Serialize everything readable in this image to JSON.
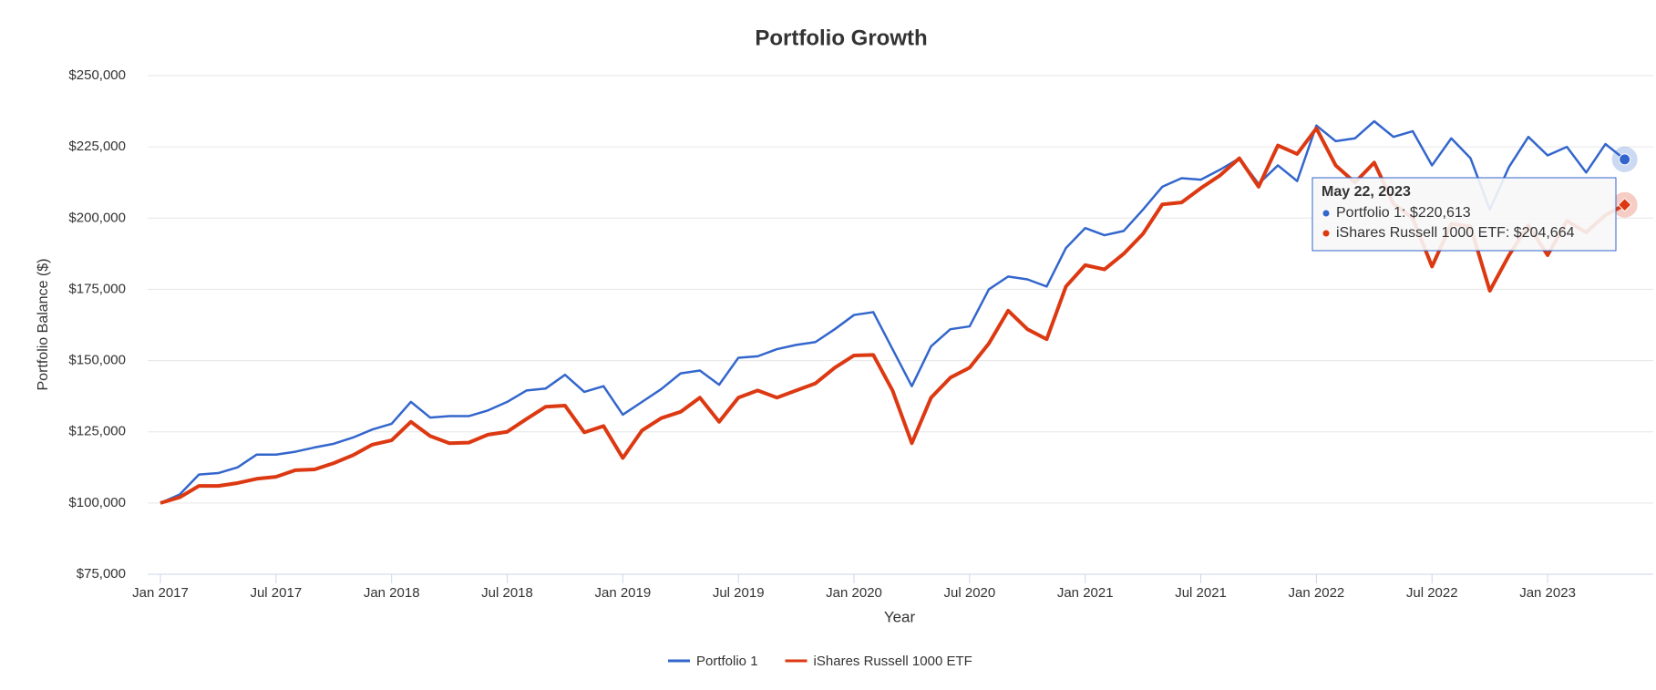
{
  "chart_data": {
    "type": "line",
    "title": "Portfolio Growth",
    "x_label": "Year",
    "y_label": "Portfolio Balance ($)",
    "x": [
      "2017-01",
      "2017-02",
      "2017-03",
      "2017-04",
      "2017-05",
      "2017-06",
      "2017-07",
      "2017-08",
      "2017-09",
      "2017-10",
      "2017-11",
      "2017-12",
      "2018-01",
      "2018-02",
      "2018-03",
      "2018-04",
      "2018-05",
      "2018-06",
      "2018-07",
      "2018-08",
      "2018-09",
      "2018-10",
      "2018-11",
      "2018-12",
      "2019-01",
      "2019-02",
      "2019-03",
      "2019-04",
      "2019-05",
      "2019-06",
      "2019-07",
      "2019-08",
      "2019-09",
      "2019-10",
      "2019-11",
      "2019-12",
      "2020-01",
      "2020-02",
      "2020-03",
      "2020-04",
      "2020-05",
      "2020-06",
      "2020-07",
      "2020-08",
      "2020-09",
      "2020-10",
      "2020-11",
      "2020-12",
      "2021-01",
      "2021-02",
      "2021-03",
      "2021-04",
      "2021-05",
      "2021-06",
      "2021-07",
      "2021-08",
      "2021-09",
      "2021-10",
      "2021-11",
      "2021-12",
      "2022-01",
      "2022-02",
      "2022-03",
      "2022-04",
      "2022-05",
      "2022-06",
      "2022-07",
      "2022-08",
      "2022-09",
      "2022-10",
      "2022-11",
      "2022-12",
      "2023-01",
      "2023-02",
      "2023-03",
      "2023-04",
      "2023-05"
    ],
    "series": [
      {
        "name": "Portfolio 1",
        "color": "#3366cc",
        "values": [
          100000,
          103000,
          110000,
          110500,
          112500,
          117000,
          117000,
          118000,
          119500,
          120800,
          123000,
          125800,
          127800,
          135500,
          130000,
          130500,
          130500,
          132500,
          135500,
          139500,
          140200,
          145000,
          139000,
          141000,
          131000,
          135500,
          140000,
          145500,
          146500,
          141500,
          151000,
          151500,
          154000,
          155500,
          156500,
          161000,
          166000,
          167000,
          154000,
          141000,
          155000,
          161000,
          162000,
          175000,
          179500,
          178500,
          176000,
          189500,
          196500,
          194000,
          195500,
          203000,
          211000,
          214000,
          213500,
          217000,
          221000,
          212000,
          218500,
          213000,
          232500,
          227000,
          228000,
          234000,
          228500,
          230500,
          218500,
          228000,
          221000,
          203000,
          218000,
          228500,
          222000,
          225000,
          216000,
          226000,
          220613
        ]
      },
      {
        "name": "iShares Russell 1000 ETF",
        "color": "#dc3912",
        "values": [
          100000,
          102000,
          106000,
          106000,
          107000,
          108500,
          109200,
          111500,
          111800,
          114000,
          116800,
          120500,
          122000,
          128500,
          123500,
          121000,
          121200,
          124000,
          125000,
          129500,
          133800,
          134200,
          124800,
          127000,
          115800,
          125500,
          129800,
          132000,
          137000,
          128500,
          137000,
          139500,
          137000,
          139500,
          142000,
          147500,
          151800,
          152000,
          139500,
          121000,
          137000,
          144000,
          147500,
          156000,
          167500,
          161000,
          157500,
          176000,
          183500,
          182000,
          187500,
          194500,
          204800,
          205500,
          210500,
          215000,
          221000,
          211000,
          225500,
          222500,
          231500,
          218500,
          212500,
          219500,
          205000,
          200000,
          183000,
          198000,
          197000,
          174500,
          187000,
          197500,
          187000,
          199000,
          195000,
          201000,
          204664
        ]
      }
    ],
    "ylim": [
      75000,
      250000
    ],
    "yticks": [
      {
        "value": 75000,
        "label": "$75,000"
      },
      {
        "value": 100000,
        "label": "$100,000"
      },
      {
        "value": 125000,
        "label": "$125,000"
      },
      {
        "value": 150000,
        "label": "$150,000"
      },
      {
        "value": 175000,
        "label": "$175,000"
      },
      {
        "value": 200000,
        "label": "$200,000"
      },
      {
        "value": 225000,
        "label": "$225,000"
      },
      {
        "value": 250000,
        "label": "$250,000"
      }
    ],
    "xticks": [
      {
        "value": "2017-01",
        "label": "Jan 2017"
      },
      {
        "value": "2017-07",
        "label": "Jul 2017"
      },
      {
        "value": "2018-01",
        "label": "Jan 2018"
      },
      {
        "value": "2018-07",
        "label": "Jul 2018"
      },
      {
        "value": "2019-01",
        "label": "Jan 2019"
      },
      {
        "value": "2019-07",
        "label": "Jul 2019"
      },
      {
        "value": "2020-01",
        "label": "Jan 2020"
      },
      {
        "value": "2020-07",
        "label": "Jul 2020"
      },
      {
        "value": "2021-01",
        "label": "Jan 2021"
      },
      {
        "value": "2021-07",
        "label": "Jul 2021"
      },
      {
        "value": "2022-01",
        "label": "Jan 2022"
      },
      {
        "value": "2022-07",
        "label": "Jul 2022"
      },
      {
        "value": "2023-01",
        "label": "Jan 2023"
      }
    ],
    "grid": true,
    "legend": "bottom",
    "tooltip": {
      "title": "May 22, 2023",
      "lines": [
        "Portfolio 1: $220,613",
        "iShares Russell 1000 ETF: $204,664"
      ]
    }
  }
}
